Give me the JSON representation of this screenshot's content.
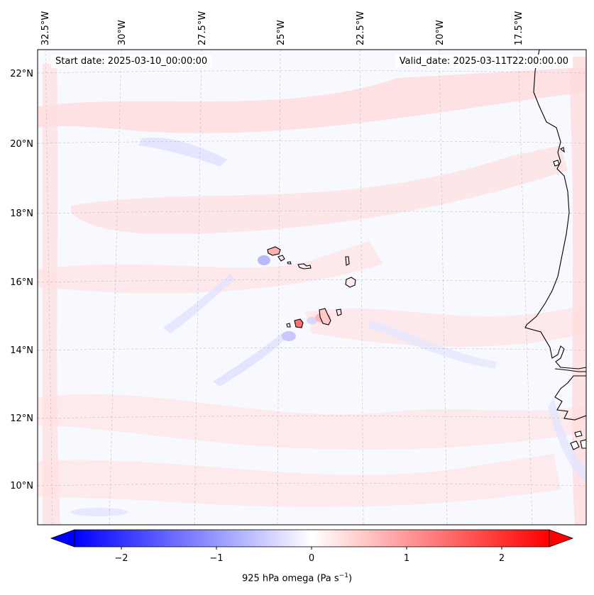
{
  "header": {
    "start_date": "Start date: 2025-03-10_00:00:00",
    "valid_date": "Valid_date: 2025-03-11T22:00:00.00"
  },
  "map": {
    "longitude_labels": [
      "32.5°W",
      "30°W",
      "27.5°W",
      "25°W",
      "22.5°W",
      "20°W",
      "17.5°W"
    ],
    "latitude_labels": [
      "22°N",
      "20°N",
      "18°N",
      "16°N",
      "14°N",
      "12°N",
      "10°N"
    ],
    "field": "925 hPa omega",
    "colormap": "bwr",
    "grid_color": "#bdbdbd",
    "background_color": "#f7f7ff",
    "coastline_color": "#000000"
  },
  "colorbar": {
    "label_main": "925 hPa omega (Pa s",
    "label_exp": "−1",
    "label_close": ")",
    "ticks": [
      "−2",
      "−1",
      "0",
      "1",
      "2"
    ],
    "tick_values": [
      -2,
      -1,
      0,
      1,
      2
    ],
    "vmin": -2.6,
    "vmax": 2.6,
    "extend": "both",
    "min_color": "#0000ff",
    "max_color": "#ff0000"
  }
}
